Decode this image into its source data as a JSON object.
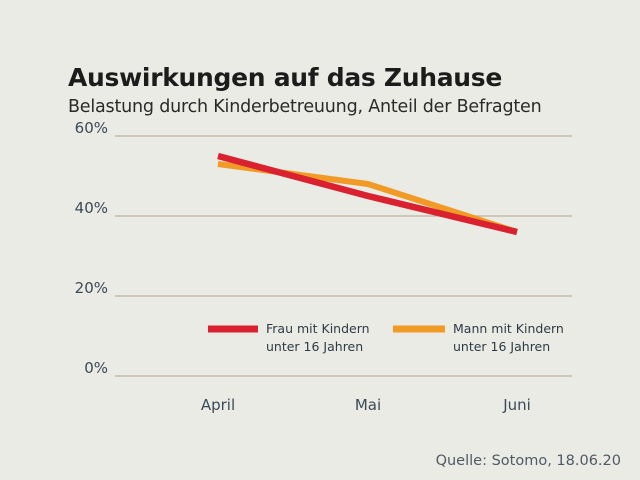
{
  "title": "Auswirkungen auf das Zuhause",
  "subtitle": "Belastung durch Kinderbetreuung, Anteil der Befragten",
  "source": "Quelle: Sotomo, 18.06.20",
  "colors": {
    "background": "#ebebe6",
    "grid": "#bdb29c",
    "axis_text": "#3b4a56",
    "series_frau": "#d92130",
    "series_mann": "#f29a26"
  },
  "chart_data": {
    "type": "line",
    "categories": [
      "April",
      "Mai",
      "Juni"
    ],
    "ylim": [
      0,
      60
    ],
    "yticks": [
      {
        "value": 0,
        "label": "0%"
      },
      {
        "value": 20,
        "label": "20%"
      },
      {
        "value": 40,
        "label": "40%"
      },
      {
        "value": 60,
        "label": "60%"
      }
    ],
    "grid": true,
    "legend_position": "bottom-right",
    "series": [
      {
        "key": "frau",
        "name_lines": [
          "Frau mit Kindern",
          "unter 16 Jahren"
        ],
        "values": [
          55,
          45,
          36
        ],
        "color": "#d92130"
      },
      {
        "key": "mann",
        "name_lines": [
          "Mann mit Kindern",
          "unter 16 Jahren"
        ],
        "values": [
          53,
          48,
          36
        ],
        "color": "#f29a26"
      }
    ]
  }
}
